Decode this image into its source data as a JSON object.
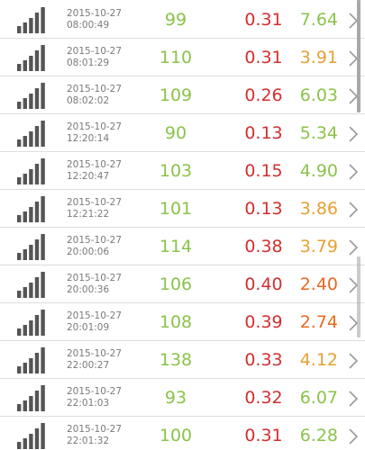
{
  "rows": [
    {
      "date": "2015-10-27",
      "time": "08:00:49",
      "v1": "99",
      "v2": "0.31",
      "v3": "7.64",
      "c1": "#8bc34a",
      "c2": "#d32f2f",
      "c3": "#8bc34a"
    },
    {
      "date": "2015-10-27",
      "time": "08:01:29",
      "v1": "110",
      "v2": "0.31",
      "v3": "3.91",
      "c1": "#8bc34a",
      "c2": "#d32f2f",
      "c3": "#e6a033"
    },
    {
      "date": "2015-10-27",
      "time": "08:02:02",
      "v1": "109",
      "v2": "0.26",
      "v3": "6.03",
      "c1": "#8bc34a",
      "c2": "#d32f2f",
      "c3": "#8bc34a"
    },
    {
      "date": "2015-10-27",
      "time": "12:20:14",
      "v1": "90",
      "v2": "0.13",
      "v3": "5.34",
      "c1": "#8bc34a",
      "c2": "#d32f2f",
      "c3": "#8bc34a"
    },
    {
      "date": "2015-10-27",
      "time": "12:20:47",
      "v1": "103",
      "v2": "0.15",
      "v3": "4.90",
      "c1": "#8bc34a",
      "c2": "#d32f2f",
      "c3": "#8bc34a"
    },
    {
      "date": "2015-10-27",
      "time": "12:21:22",
      "v1": "101",
      "v2": "0.13",
      "v3": "3.86",
      "c1": "#8bc34a",
      "c2": "#d32f2f",
      "c3": "#e6a033"
    },
    {
      "date": "2015-10-27",
      "time": "20:00:06",
      "v1": "114",
      "v2": "0.38",
      "v3": "3.79",
      "c1": "#8bc34a",
      "c2": "#d32f2f",
      "c3": "#e6a033"
    },
    {
      "date": "2015-10-27",
      "time": "20:00:36",
      "v1": "106",
      "v2": "0.40",
      "v3": "2.40",
      "c1": "#8bc34a",
      "c2": "#d32f2f",
      "c3": "#e86a1f"
    },
    {
      "date": "2015-10-27",
      "time": "20:01:09",
      "v1": "108",
      "v2": "0.39",
      "v3": "2.74",
      "c1": "#8bc34a",
      "c2": "#d32f2f",
      "c3": "#e86a1f"
    },
    {
      "date": "2015-10-27",
      "time": "22:00:27",
      "v1": "138",
      "v2": "0.33",
      "v3": "4.12",
      "c1": "#8bc34a",
      "c2": "#d32f2f",
      "c3": "#e6a033"
    },
    {
      "date": "2015-10-27",
      "time": "22:01:03",
      "v1": "93",
      "v2": "0.32",
      "v3": "6.07",
      "c1": "#8bc34a",
      "c2": "#d32f2f",
      "c3": "#8bc34a"
    },
    {
      "date": "2015-10-27",
      "time": "22:01:32",
      "v1": "100",
      "v2": "0.31",
      "v3": "6.28",
      "c1": "#8bc34a",
      "c2": "#d32f2f",
      "c3": "#8bc34a"
    }
  ],
  "icons": {
    "signal": "signal-bars-icon",
    "chevron": "chevron-right-icon"
  },
  "colors": {
    "scrollbar": "#a8a8a8",
    "divider": "#dedede",
    "text_muted": "#7a7a7a"
  }
}
